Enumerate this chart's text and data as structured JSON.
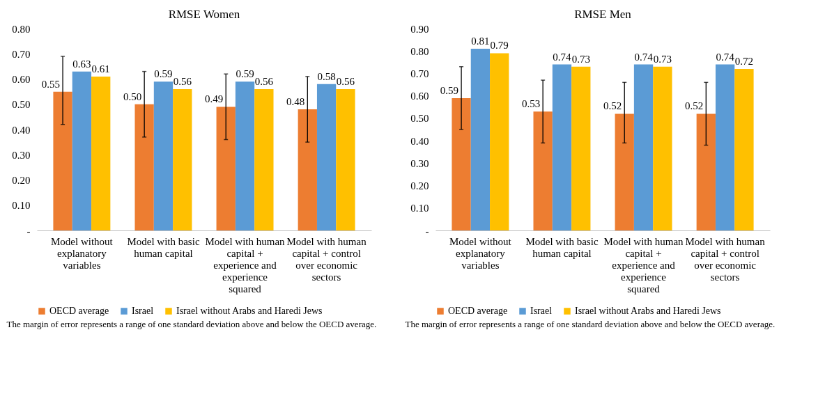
{
  "chart_data": [
    {
      "type": "bar",
      "title": "RMSE Women",
      "categories": [
        "Model without explanatory variables",
        "Model with basic human capital",
        "Model with human capital + experience and experience squared",
        "Model with human capital + control over economic sectors"
      ],
      "series": [
        {
          "name": "OECD average",
          "color": "#ed7d31",
          "values": [
            0.55,
            0.5,
            0.49,
            0.48
          ],
          "value_labels": [
            "0.55",
            "0.50",
            "0.49",
            "0.48"
          ],
          "errors": [
            [
              0.42,
              0.69
            ],
            [
              0.37,
              0.63
            ],
            [
              0.36,
              0.62
            ],
            [
              0.35,
              0.61
            ]
          ]
        },
        {
          "name": "Israel",
          "color": "#5b9bd5",
          "values": [
            0.63,
            0.59,
            0.59,
            0.58
          ]
        },
        {
          "name": "Israel without Arabs and Haredi Jews",
          "color": "#ffc000",
          "values": [
            0.61,
            0.56,
            0.56,
            0.56
          ]
        }
      ],
      "ylim": [
        0,
        0.8
      ],
      "yticks": [
        {
          "value": 0,
          "label": "-"
        },
        {
          "value": 0.1,
          "label": "0.10"
        },
        {
          "value": 0.2,
          "label": "0.20"
        },
        {
          "value": 0.3,
          "label": "0.30"
        },
        {
          "value": 0.4,
          "label": "0.40"
        },
        {
          "value": 0.5,
          "label": "0.50"
        },
        {
          "value": 0.6,
          "label": "0.60"
        },
        {
          "value": 0.7,
          "label": "0.70"
        },
        {
          "value": 0.8,
          "label": "0.80"
        }
      ],
      "data_labels": true,
      "grid": false,
      "legend": "bottom",
      "annotations": [
        "The margin of error represents a range of one standard deviation above and below the OECD average."
      ]
    },
    {
      "type": "bar",
      "title": "RMSE Men",
      "categories": [
        "Model without explanatory variables",
        "Model with basic human capital",
        "Model with human capital + experience and experience squared",
        "Model with human capital + control over economic sectors"
      ],
      "series": [
        {
          "name": "OECD average",
          "color": "#ed7d31",
          "values": [
            0.59,
            0.53,
            0.52,
            0.52
          ],
          "errors": [
            [
              0.45,
              0.73
            ],
            [
              0.39,
              0.67
            ],
            [
              0.39,
              0.66
            ],
            [
              0.38,
              0.66
            ]
          ]
        },
        {
          "name": "Israel",
          "color": "#5b9bd5",
          "values": [
            0.81,
            0.74,
            0.74,
            0.74
          ]
        },
        {
          "name": "Israel without Arabs and Haredi Jews",
          "color": "#ffc000",
          "values": [
            0.79,
            0.73,
            0.73,
            0.72
          ]
        }
      ],
      "ylim": [
        0,
        0.9
      ],
      "yticks": [
        {
          "value": 0,
          "label": "-"
        },
        {
          "value": 0.1,
          "label": "0.10"
        },
        {
          "value": 0.2,
          "label": "0.20"
        },
        {
          "value": 0.3,
          "label": "0.30"
        },
        {
          "value": 0.4,
          "label": "0.40"
        },
        {
          "value": 0.5,
          "label": "0.50"
        },
        {
          "value": 0.6,
          "label": "0.60"
        },
        {
          "value": 0.7,
          "label": "0.70"
        },
        {
          "value": 0.8,
          "label": "0.80"
        },
        {
          "value": 0.9,
          "label": "0.90"
        }
      ],
      "data_labels": true,
      "grid": false,
      "legend": "bottom",
      "annotations": [
        "The margin of error represents a range of one standard deviation above and below the OECD average."
      ]
    }
  ]
}
